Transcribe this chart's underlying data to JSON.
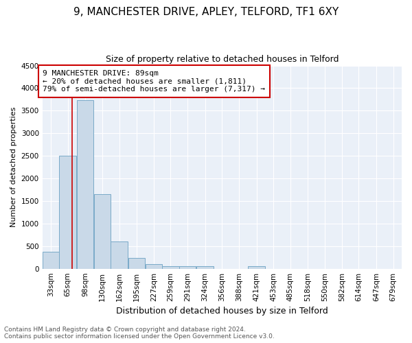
{
  "title_line1": "9, MANCHESTER DRIVE, APLEY, TELFORD, TF1 6XY",
  "title_line2": "Size of property relative to detached houses in Telford",
  "xlabel": "Distribution of detached houses by size in Telford",
  "ylabel": "Number of detached properties",
  "annotation_title": "9 MANCHESTER DRIVE: 89sqm",
  "annotation_line2": "← 20% of detached houses are smaller (1,811)",
  "annotation_line3": "79% of semi-detached houses are larger (7,317) →",
  "bin_labels": [
    "33sqm",
    "65sqm",
    "98sqm",
    "130sqm",
    "162sqm",
    "195sqm",
    "227sqm",
    "259sqm",
    "291sqm",
    "324sqm",
    "356sqm",
    "388sqm",
    "421sqm",
    "453sqm",
    "485sqm",
    "518sqm",
    "550sqm",
    "582sqm",
    "614sqm",
    "647sqm",
    "679sqm"
  ],
  "bin_edges": [
    33,
    65,
    98,
    130,
    162,
    195,
    227,
    259,
    291,
    324,
    356,
    388,
    421,
    453,
    485,
    518,
    550,
    582,
    614,
    647,
    679
  ],
  "bin_width": 32,
  "bar_heights": [
    375,
    2510,
    3730,
    1650,
    600,
    240,
    100,
    60,
    50,
    50,
    0,
    0,
    55,
    0,
    0,
    0,
    0,
    0,
    0,
    0,
    0
  ],
  "bar_color": "#c9d9e8",
  "bar_edge_color": "#7aaac8",
  "vline_x": 89,
  "vline_color": "#cc0000",
  "ylim": [
    0,
    4500
  ],
  "yticks": [
    0,
    500,
    1000,
    1500,
    2000,
    2500,
    3000,
    3500,
    4000,
    4500
  ],
  "bg_color": "#eaf0f8",
  "annotation_box_edge": "#cc0000",
  "title1_fontsize": 11,
  "title2_fontsize": 9,
  "ylabel_fontsize": 8,
  "xlabel_fontsize": 9,
  "tick_fontsize": 7.5,
  "annotation_fontsize": 8,
  "footer_fontsize": 6.5,
  "footer_line1": "Contains HM Land Registry data © Crown copyright and database right 2024.",
  "footer_line2": "Contains public sector information licensed under the Open Government Licence v3.0."
}
